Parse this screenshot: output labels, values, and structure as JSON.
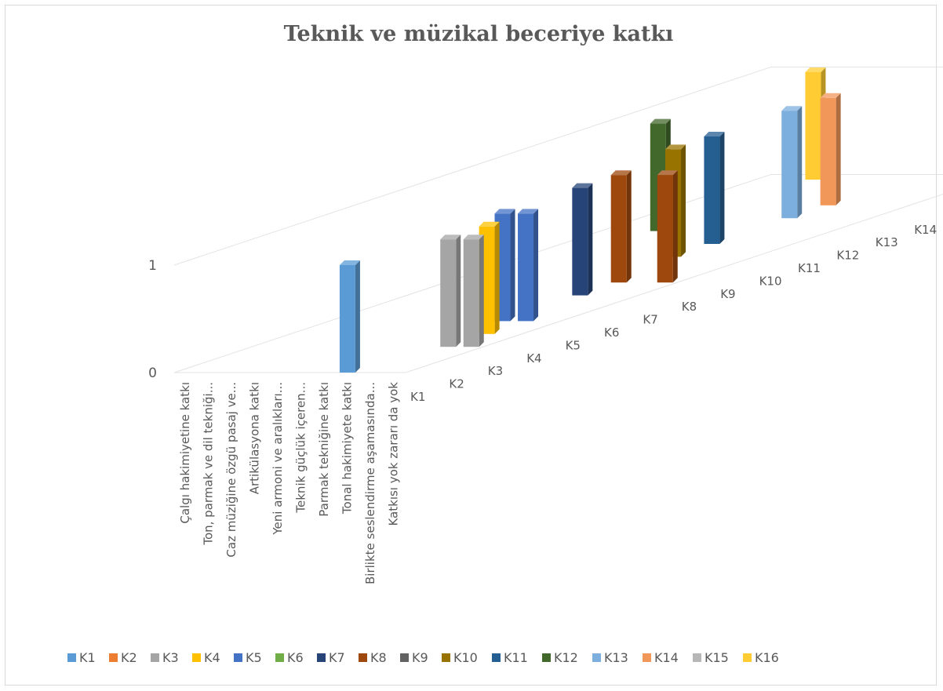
{
  "chart_data": {
    "type": "bar",
    "title": "Teknik ve müzikal beceriye katkı",
    "categories": [
      "Çalgı hakimiyetine katkı",
      "Ton, parmak ve dil tekniği...",
      "Caz müziğine özgü pasaj ve...",
      "Artikülasyona katkı",
      "Yeni armoni ve aralıkları...",
      "Teknik güçlük içeren...",
      "Parmak tekniğine katkı",
      "Tonal hakimiyete katkı",
      "Birlikte seslendirme aşamasında...",
      "Katkısı yok zararı da yok"
    ],
    "yticks": [
      "0",
      "1"
    ],
    "ylim": [
      0,
      1
    ],
    "depth_labels": [
      "K1",
      "K2",
      "K3",
      "K4",
      "K5",
      "K6",
      "K7",
      "K8",
      "K9",
      "K10",
      "K11",
      "K12",
      "K13",
      "K14",
      "K15",
      "K16"
    ],
    "series": [
      {
        "name": "K1",
        "color": "#5b9bd5",
        "values": [
          0,
          0,
          0,
          0,
          0,
          0,
          0,
          1,
          0,
          0
        ]
      },
      {
        "name": "K2",
        "color": "#ed7d31",
        "values": [
          0,
          0,
          0,
          0,
          0,
          0,
          0,
          0,
          0,
          0
        ]
      },
      {
        "name": "K3",
        "color": "#a5a5a5",
        "values": [
          0,
          0,
          0,
          0,
          0,
          0,
          0,
          0,
          1,
          1
        ]
      },
      {
        "name": "K4",
        "color": "#ffc000",
        "values": [
          0,
          0,
          0,
          0,
          0,
          0,
          0,
          0,
          1,
          0
        ]
      },
      {
        "name": "K5",
        "color": "#4472c4",
        "values": [
          0,
          0,
          0,
          0,
          0,
          0,
          0,
          1,
          1,
          0
        ]
      },
      {
        "name": "K6",
        "color": "#70ad47",
        "values": [
          0,
          0,
          0,
          0,
          0,
          0,
          0,
          0,
          0,
          0
        ]
      },
      {
        "name": "K7",
        "color": "#264478",
        "values": [
          0,
          0,
          0,
          0,
          0,
          0,
          0,
          1,
          0,
          0
        ]
      },
      {
        "name": "K8",
        "color": "#9e480e",
        "values": [
          0,
          0,
          0,
          0,
          0,
          0,
          0,
          1,
          0,
          1
        ]
      },
      {
        "name": "K9",
        "color": "#636363",
        "values": [
          0,
          0,
          0,
          0,
          0,
          0,
          0,
          0,
          0,
          0
        ]
      },
      {
        "name": "K10",
        "color": "#997300",
        "values": [
          0,
          0,
          0,
          0,
          0,
          0,
          1,
          0,
          0,
          0
        ]
      },
      {
        "name": "K11",
        "color": "#255e91",
        "values": [
          0,
          0,
          0,
          0,
          0,
          0,
          1,
          0,
          0,
          0
        ]
      },
      {
        "name": "K12",
        "color": "#43682b",
        "values": [
          0,
          0,
          1,
          0,
          0,
          0,
          0,
          0,
          0,
          0
        ]
      },
      {
        "name": "K13",
        "color": "#7cafdd",
        "values": [
          0,
          0,
          0,
          0,
          0,
          0,
          1,
          0,
          0,
          0
        ]
      },
      {
        "name": "K14",
        "color": "#f1975a",
        "values": [
          0,
          0,
          0,
          0,
          0,
          0,
          1,
          0,
          0,
          0
        ]
      },
      {
        "name": "K15",
        "color": "#b7b7b7",
        "values": [
          0,
          0,
          0,
          0,
          0,
          0,
          0,
          0,
          0,
          0
        ]
      },
      {
        "name": "K16",
        "color": "#ffcd33",
        "values": [
          0,
          0,
          1,
          0,
          0,
          0,
          0,
          0,
          0,
          1
        ]
      }
    ],
    "legend_position": "bottom",
    "grid": true
  }
}
